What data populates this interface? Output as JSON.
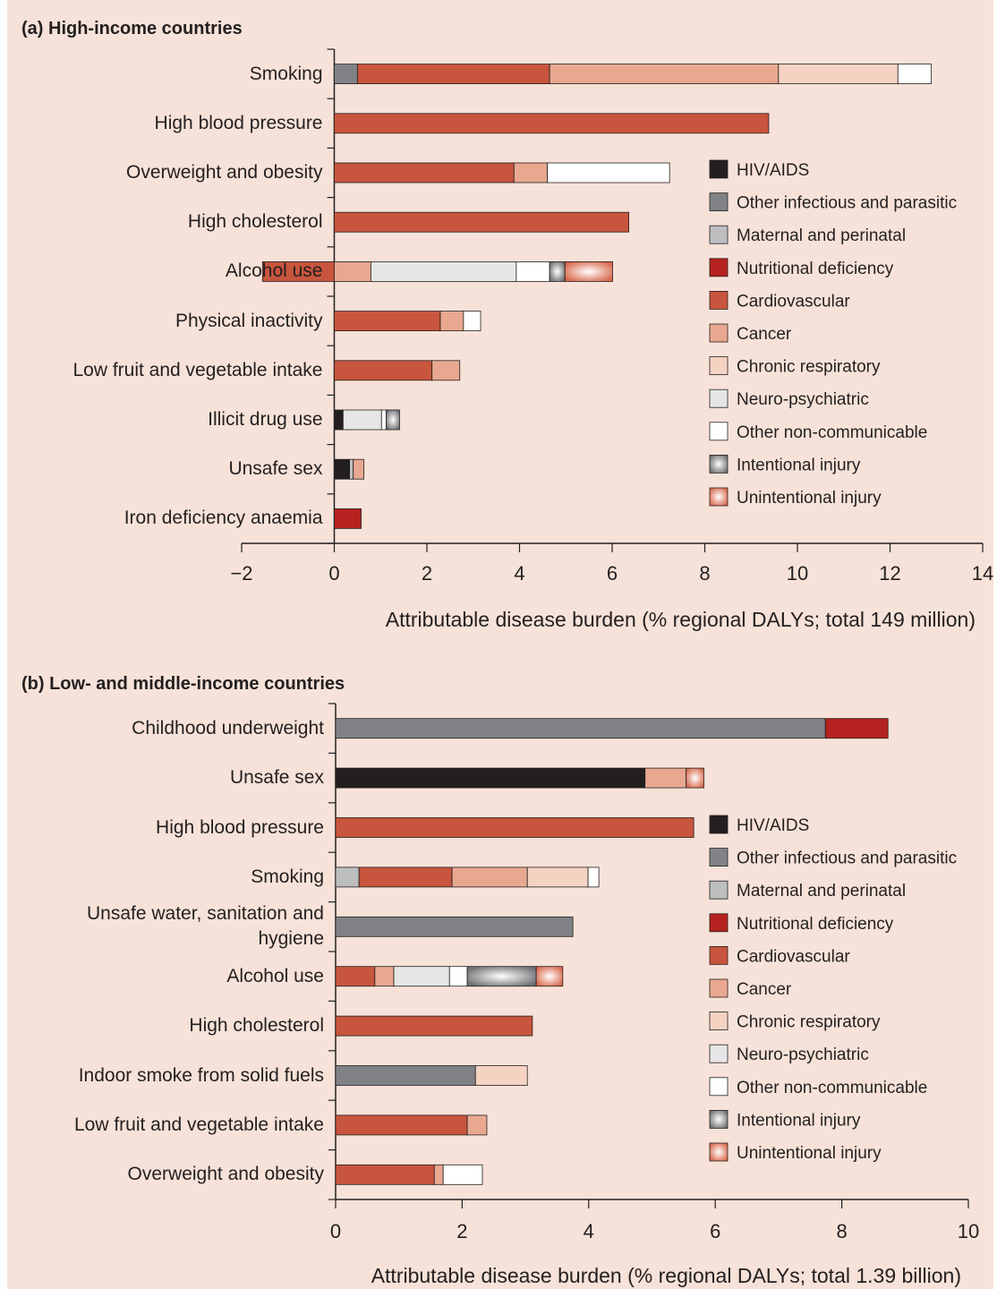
{
  "chart_data": [
    {
      "type": "bar",
      "title": "(a) High-income countries",
      "x_label": "Attributable disease burden (% regional DALYs; total 149 million)",
      "categories": [
        "Smoking",
        "High blood pressure",
        "Overweight and obesity",
        "High cholesterol",
        "Alcohol use",
        "Physical inactivity",
        "Low fruit and vegetable intake",
        "Illicit drug use",
        "Unsafe sex",
        "Iron deficiency anaemia"
      ],
      "xlim": [
        -2,
        14
      ],
      "xticks": [
        {
          "value": -2,
          "label": "−2"
        },
        0,
        2,
        4,
        6,
        8,
        10,
        12,
        14
      ],
      "legend": "right",
      "series": [
        {
          "name": "HIV/AIDS",
          "color": "#231f20",
          "values": [
            null,
            null,
            null,
            null,
            null,
            null,
            null,
            0.19,
            0.33,
            null
          ]
        },
        {
          "name": "Other infectious and parasitic",
          "color": "#808285",
          "values": [
            0.5,
            null,
            null,
            null,
            null,
            null,
            null,
            null,
            null,
            null
          ]
        },
        {
          "name": "Maternal and perinatal",
          "color": "#bcbec0",
          "values": [
            null,
            null,
            null,
            null,
            null,
            null,
            null,
            null,
            0.08,
            null
          ]
        },
        {
          "name": "Nutritional deficiency",
          "color": "#b5221f",
          "values": [
            null,
            null,
            null,
            null,
            null,
            null,
            null,
            null,
            null,
            0.58
          ]
        },
        {
          "name": "Cardiovascular",
          "color": "#c8553d",
          "values": [
            4.15,
            9.38,
            3.88,
            6.36,
            -1.55,
            2.29,
            2.11,
            null,
            null,
            null
          ]
        },
        {
          "name": "Cancer",
          "color": "#e8a890",
          "values": [
            4.94,
            null,
            0.72,
            null,
            0.79,
            0.5,
            0.6,
            null,
            0.23,
            null
          ]
        },
        {
          "name": "Chronic respiratory",
          "color": "#f5d3c3",
          "values": [
            2.58,
            null,
            null,
            null,
            null,
            null,
            null,
            null,
            null,
            null
          ]
        },
        {
          "name": "Neuro-psychiatric",
          "color": "#e6e6e6",
          "values": [
            null,
            null,
            null,
            null,
            3.14,
            null,
            null,
            0.83,
            null,
            null
          ]
        },
        {
          "name": "Other non-communicable",
          "color": "#ffffff",
          "values": [
            0.72,
            null,
            2.64,
            null,
            0.72,
            0.37,
            null,
            0.1,
            null,
            null
          ]
        },
        {
          "name": "Intentional injury",
          "color": "#6d6e71",
          "gradient": true,
          "values": [
            null,
            null,
            null,
            null,
            0.33,
            null,
            null,
            0.29,
            null,
            null
          ]
        },
        {
          "name": "Unintentional injury",
          "color": "#d8674a",
          "gradient": true,
          "values": [
            null,
            null,
            null,
            null,
            1.03,
            null,
            null,
            null,
            null,
            null
          ]
        }
      ]
    },
    {
      "type": "bar",
      "title": "(b) Low- and middle-income countries",
      "x_label": "Attributable disease burden (% regional DALYs; total 1.39 billion)",
      "categories": [
        "Childhood underweight",
        "Unsafe sex",
        "High blood pressure",
        "Smoking",
        "Unsafe water, sanitation and hygiene",
        "Alcohol use",
        "High cholesterol",
        "Indoor smoke from solid fuels",
        "Low fruit and vegetable intake",
        "Overweight and obesity"
      ],
      "xlim": [
        0,
        10
      ],
      "xticks": [
        0,
        2,
        4,
        6,
        8,
        10
      ],
      "legend": "right",
      "series": [
        {
          "name": "HIV/AIDS",
          "color": "#231f20",
          "values": [
            null,
            4.89,
            null,
            null,
            null,
            null,
            null,
            null,
            null,
            null
          ]
        },
        {
          "name": "Other infectious and parasitic",
          "color": "#808285",
          "values": [
            7.74,
            null,
            null,
            null,
            3.75,
            null,
            null,
            2.21,
            null,
            null
          ]
        },
        {
          "name": "Maternal and perinatal",
          "color": "#bcbec0",
          "values": [
            null,
            null,
            null,
            0.37,
            null,
            null,
            null,
            null,
            null,
            null
          ]
        },
        {
          "name": "Nutritional deficiency",
          "color": "#b5221f",
          "values": [
            0.99,
            null,
            null,
            null,
            null,
            null,
            null,
            null,
            null,
            null
          ]
        },
        {
          "name": "Cardiovascular",
          "color": "#c8553d",
          "values": [
            null,
            null,
            5.66,
            1.47,
            null,
            0.62,
            3.11,
            null,
            2.08,
            1.56
          ]
        },
        {
          "name": "Cancer",
          "color": "#e8a890",
          "values": [
            null,
            0.65,
            null,
            1.19,
            null,
            0.3,
            null,
            null,
            0.31,
            0.14
          ]
        },
        {
          "name": "Chronic respiratory",
          "color": "#f5d3c3",
          "values": [
            null,
            null,
            null,
            0.96,
            null,
            null,
            null,
            0.82,
            null,
            null
          ]
        },
        {
          "name": "Neuro-psychiatric",
          "color": "#e6e6e6",
          "values": [
            null,
            null,
            null,
            null,
            null,
            0.88,
            null,
            null,
            null,
            null
          ]
        },
        {
          "name": "Other non-communicable",
          "color": "#ffffff",
          "values": [
            null,
            null,
            null,
            0.17,
            null,
            0.28,
            null,
            null,
            null,
            0.62
          ]
        },
        {
          "name": "Intentional injury",
          "color": "#6d6e71",
          "gradient": true,
          "values": [
            null,
            null,
            null,
            null,
            null,
            1.09,
            null,
            null,
            null,
            null
          ]
        },
        {
          "name": "Unintentional injury",
          "color": "#d8674a",
          "gradient": true,
          "values": [
            null,
            0.28,
            null,
            null,
            null,
            0.42,
            null,
            null,
            null,
            null
          ]
        }
      ]
    }
  ]
}
